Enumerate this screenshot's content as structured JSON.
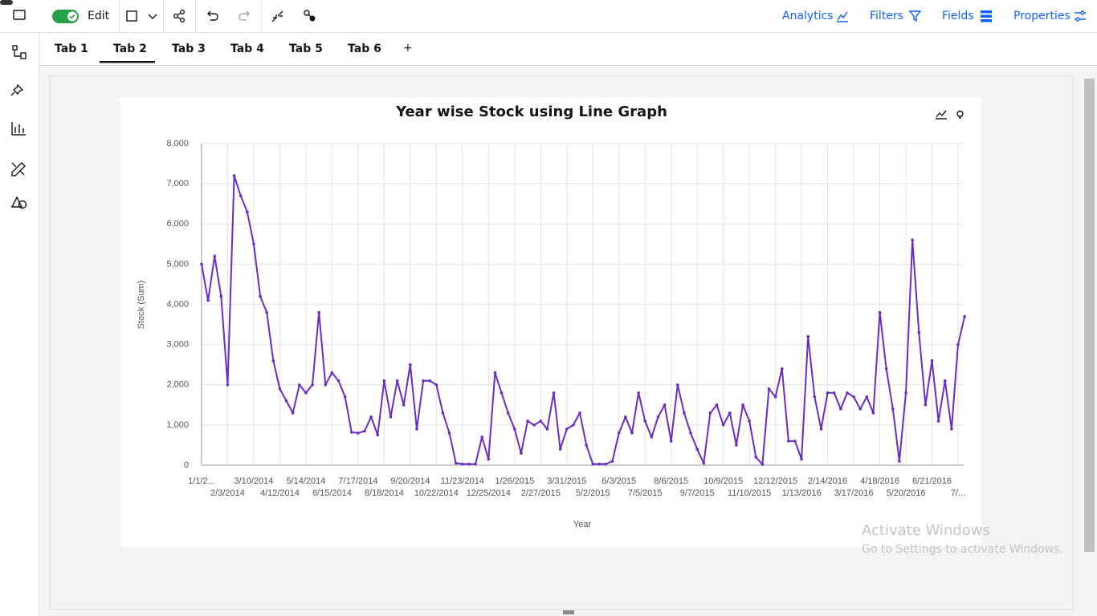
{
  "ui": {
    "toolbar": {
      "edit": "Edit",
      "analytics": "Analytics",
      "filters": "Filters",
      "fields": "Fields",
      "properties": "Properties"
    },
    "tabs": [
      "Tab 1",
      "Tab 2",
      "Tab 3",
      "Tab 4",
      "Tab 5",
      "Tab 6"
    ],
    "add_tab": "+",
    "watermark": {
      "title": "Activate Windows",
      "subtitle": "Go to Settings to activate Windows."
    }
  },
  "chart_data": {
    "type": "line",
    "title": "Year wise Stock using Line Graph",
    "x_label": "Year",
    "y_label": "Stock (Sum)",
    "categories": [
      "1/1/2...",
      null,
      null,
      null,
      "2/3/2014",
      null,
      null,
      null,
      "3/10/2014",
      null,
      null,
      null,
      "4/12/2014",
      null,
      null,
      null,
      "5/14/2014",
      null,
      null,
      null,
      "6/15/2014",
      null,
      null,
      null,
      "7/17/2014",
      null,
      null,
      null,
      "8/18/2014",
      null,
      null,
      null,
      "9/20/2014",
      null,
      null,
      null,
      "10/22/2014",
      null,
      null,
      null,
      "11/23/2014",
      null,
      null,
      null,
      "12/25/2014",
      null,
      null,
      null,
      "1/26/2015",
      null,
      null,
      null,
      "2/27/2015",
      null,
      null,
      null,
      "3/31/2015",
      null,
      null,
      null,
      "5/2/2015",
      null,
      null,
      null,
      "6/3/2015",
      null,
      null,
      null,
      "7/5/2015",
      null,
      null,
      null,
      "8/6/2015",
      null,
      null,
      null,
      "9/7/2015",
      null,
      null,
      null,
      "10/9/2015",
      null,
      null,
      null,
      "11/10/2015",
      null,
      null,
      null,
      "12/12/2015",
      null,
      null,
      null,
      "1/13/2016",
      null,
      null,
      null,
      "2/14/2016",
      null,
      null,
      null,
      "3/17/2016",
      null,
      null,
      null,
      "4/18/2016",
      null,
      null,
      null,
      "5/20/2016",
      null,
      null,
      null,
      "6/21/2016",
      null,
      null,
      null,
      "7/...",
      null
    ],
    "series": [
      {
        "color": "#6a2cc4",
        "values": [
          5000,
          4100,
          5200,
          4200,
          2000,
          7200,
          6700,
          6300,
          5500,
          4200,
          3800,
          2600,
          1900,
          1600,
          1300,
          2000,
          1800,
          2000,
          3800,
          2000,
          2300,
          2100,
          1700,
          820,
          800,
          850,
          1200,
          750,
          2100,
          1200,
          2100,
          1500,
          2500,
          900,
          2100,
          2100,
          2000,
          1300,
          800,
          50,
          30,
          30,
          30,
          700,
          150,
          2300,
          1800,
          1300,
          900,
          300,
          1100,
          1000,
          1100,
          900,
          1800,
          400,
          900,
          1000,
          1300,
          500,
          30,
          30,
          30,
          100,
          800,
          1200,
          800,
          1800,
          1100,
          700,
          1200,
          1500,
          600,
          2000,
          1300,
          800,
          400,
          50,
          1300,
          1500,
          1000,
          1300,
          500,
          1500,
          1100,
          200,
          20,
          1900,
          1700,
          2400,
          600,
          600,
          150,
          3200,
          1700,
          900,
          1800,
          1800,
          1400,
          1800,
          1700,
          1400,
          1700,
          1300,
          3800,
          2400,
          1400,
          100,
          1800,
          5600,
          3300,
          1500,
          2600,
          1100,
          2100,
          900,
          3000,
          3700
        ]
      }
    ],
    "ylim": [
      0,
      8000
    ],
    "yticks": [
      0,
      {
        "value": 1000,
        "label": "1,000"
      },
      {
        "value": 2000,
        "label": "2,000"
      },
      {
        "value": 3000,
        "label": "3,000"
      },
      {
        "value": 4000,
        "label": "4,000"
      },
      {
        "value": 5000,
        "label": "5,000"
      },
      {
        "value": 6000,
        "label": "6,000"
      },
      {
        "value": 7000,
        "label": "7,000"
      },
      {
        "value": 8000,
        "label": "8,000"
      }
    ],
    "grid": true
  }
}
